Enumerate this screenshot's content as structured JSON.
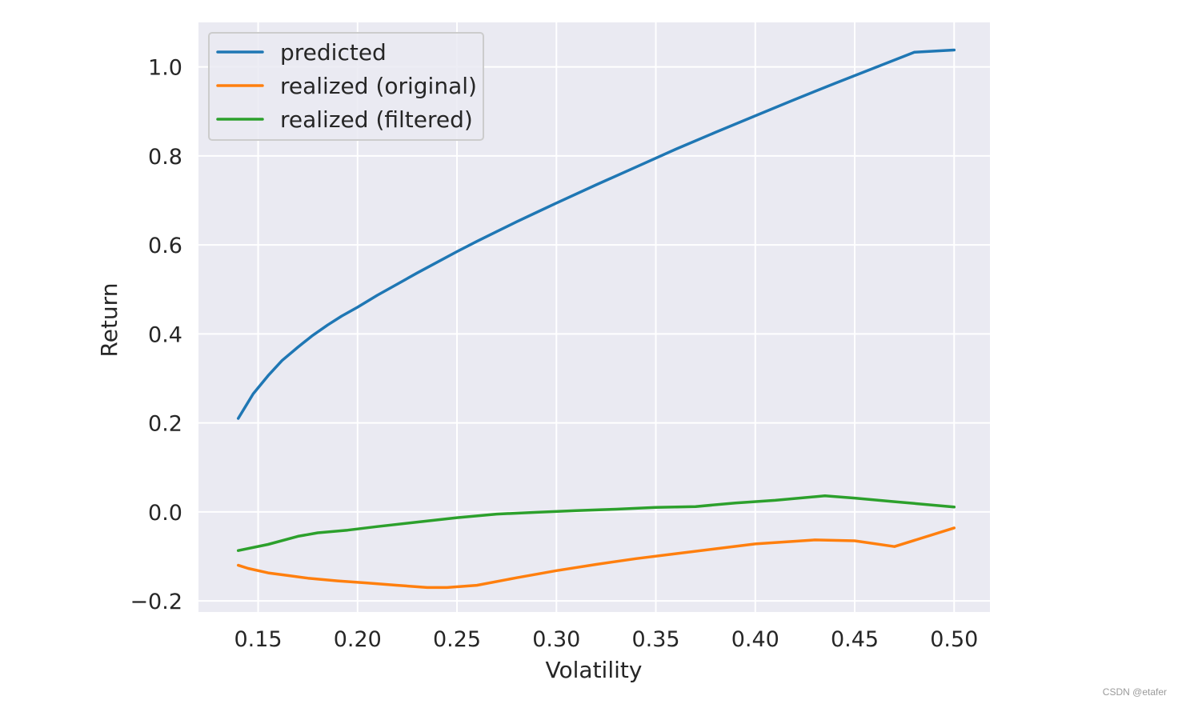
{
  "watermark": "CSDN @etafer",
  "chart_data": {
    "type": "line",
    "title": "",
    "xlabel": "Volatility",
    "ylabel": "Return",
    "xlim": [
      0.12,
      0.518
    ],
    "ylim": [
      -0.225,
      1.1
    ],
    "x_ticks": [
      0.15,
      0.2,
      0.25,
      0.3,
      0.35,
      0.4,
      0.45,
      0.5
    ],
    "x_tick_labels": [
      "0.15",
      "0.20",
      "0.25",
      "0.30",
      "0.35",
      "0.40",
      "0.45",
      "0.50"
    ],
    "y_ticks": [
      -0.2,
      0.0,
      0.2,
      0.4,
      0.6,
      0.8,
      1.0
    ],
    "y_tick_labels": [
      "−0.2",
      "0.0",
      "0.2",
      "0.4",
      "0.6",
      "0.8",
      "1.0"
    ],
    "grid": true,
    "legend_position": "top-left",
    "background_color": "#eaeaf2",
    "series": [
      {
        "name": "predicted",
        "color": "#1f77b4",
        "x": [
          0.14,
          0.1475,
          0.155,
          0.162,
          0.17,
          0.177,
          0.185,
          0.192,
          0.2,
          0.21,
          0.22,
          0.23,
          0.24,
          0.25,
          0.26,
          0.27,
          0.28,
          0.29,
          0.3,
          0.32,
          0.34,
          0.36,
          0.38,
          0.4,
          0.42,
          0.44,
          0.46,
          0.48,
          0.5
        ],
        "y": [
          0.21,
          0.265,
          0.306,
          0.34,
          0.37,
          0.395,
          0.42,
          0.44,
          0.46,
          0.487,
          0.512,
          0.537,
          0.561,
          0.585,
          0.608,
          0.63,
          0.652,
          0.673,
          0.694,
          0.735,
          0.775,
          0.815,
          0.853,
          0.89,
          0.927,
          0.963,
          0.998,
          1.033,
          1.038
        ]
      },
      {
        "name": "realized (original)",
        "color": "#ff7f0e",
        "x": [
          0.14,
          0.145,
          0.155,
          0.165,
          0.175,
          0.19,
          0.205,
          0.22,
          0.235,
          0.245,
          0.26,
          0.28,
          0.3,
          0.32,
          0.34,
          0.36,
          0.38,
          0.4,
          0.43,
          0.45,
          0.47,
          0.5
        ],
        "y": [
          -0.12,
          -0.127,
          -0.137,
          -0.143,
          -0.149,
          -0.155,
          -0.16,
          -0.165,
          -0.17,
          -0.17,
          -0.165,
          -0.148,
          -0.132,
          -0.118,
          -0.105,
          -0.094,
          -0.083,
          -0.072,
          -0.063,
          -0.065,
          -0.078,
          -0.036
        ]
      },
      {
        "name": "realized (filtered)",
        "color": "#2ca02c",
        "x": [
          0.14,
          0.155,
          0.17,
          0.18,
          0.195,
          0.21,
          0.23,
          0.25,
          0.27,
          0.29,
          0.31,
          0.33,
          0.35,
          0.37,
          0.39,
          0.41,
          0.435,
          0.45,
          0.47,
          0.5
        ],
        "y": [
          -0.087,
          -0.073,
          -0.055,
          -0.047,
          -0.041,
          -0.033,
          -0.023,
          -0.013,
          -0.005,
          -0.001,
          0.003,
          0.006,
          0.01,
          0.012,
          0.02,
          0.026,
          0.036,
          0.031,
          0.023,
          0.011
        ]
      }
    ]
  }
}
